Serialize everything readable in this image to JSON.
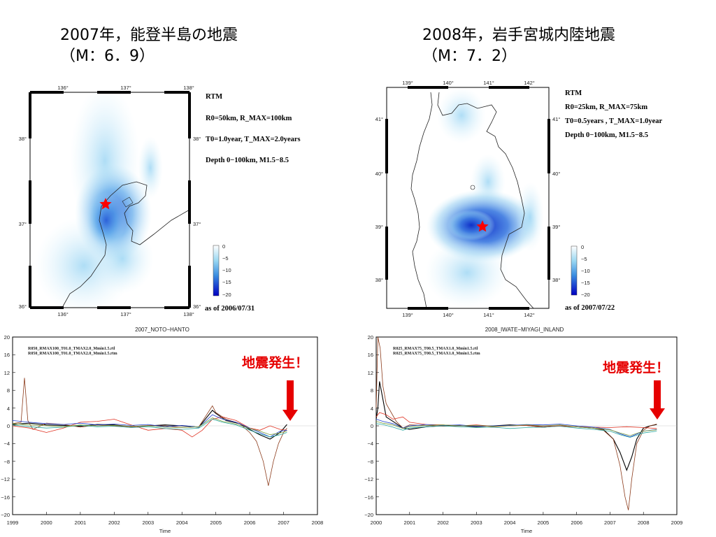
{
  "headings": {
    "left": {
      "line1": "2007年，能登半島の地震",
      "line2": "（M：6．9）"
    },
    "right": {
      "line1": "2008年，岩手宮城内陸地震",
      "line2": "（M：7．2）"
    }
  },
  "maps": [
    {
      "lon_labels": [
        "136°",
        "137°",
        "138°"
      ],
      "lat_labels": [
        "36°",
        "37°",
        "38°"
      ],
      "info": [
        "RTM",
        "R0=50km, R_MAX=100km",
        "T0=1.0year, T_MAX=2.0years",
        "Depth 0−100km, M1.5−8.5"
      ],
      "as_of": "as of 2006/07/31",
      "colorbar_ticks": [
        "0",
        "−5",
        "−10",
        "−15",
        "−20"
      ]
    },
    {
      "lon_labels": [
        "139°",
        "140°",
        "141°",
        "142°"
      ],
      "lat_labels": [
        "38°",
        "39°",
        "40°",
        "41°"
      ],
      "info": [
        "RTM",
        "R0=25km, R_MAX=75km",
        "T0=0.5years , T_MAX=1.0year",
        "Depth 0−100km, M1.5−8.5"
      ],
      "as_of": "as of 2007/07/22",
      "colorbar_ticks": [
        "0",
        "−5",
        "−10",
        "−15",
        "−20"
      ]
    }
  ],
  "alert_text": "地震発生！",
  "chart_data": [
    {
      "type": "line",
      "title": "2007_NOTO−HANTO",
      "xlabel": "Time",
      "ylabel": "",
      "xlim": [
        1999,
        2008
      ],
      "ylim": [
        -20,
        20
      ],
      "x_ticks": [
        "1999",
        "2000",
        "2001",
        "2002",
        "2003",
        "2004",
        "2005",
        "2006",
        "2007",
        "2008"
      ],
      "y_ticks": [
        "20",
        "16",
        "12",
        "8",
        "4",
        "0",
        "−4",
        "−8",
        "−12",
        "−16",
        "−20"
      ],
      "legend": [
        "R050_RMAX100_T01.0_TMAX2.0_Mmin1.5.rtl",
        "R050_RMAX100_T01.0_TMAX2.0_Mmin1.5.rtm"
      ],
      "event_x": 2007.2,
      "series": [
        {
          "color": "#000000",
          "x": [
            1999,
            1999.5,
            2000,
            2000.5,
            2001,
            2001.5,
            2002,
            2002.5,
            2003,
            2003.5,
            2004,
            2004.5,
            2004.9,
            2005,
            2005.3,
            2005.7,
            2006,
            2006.3,
            2006.6,
            2006.9,
            2007.1
          ],
          "values": [
            0.3,
            0.6,
            0.2,
            0.1,
            -0.1,
            0.3,
            0.2,
            -0.2,
            0,
            0.2,
            0,
            -0.3,
            3.5,
            2.8,
            1.2,
            0.5,
            -0.8,
            -2,
            -3,
            -1.5,
            0.3
          ]
        },
        {
          "color": "#8b3a1a",
          "x": [
            1999,
            1999.25,
            1999.35,
            1999.45,
            1999.6,
            2000,
            2000.5,
            2001,
            2001.5,
            2002,
            2002.5,
            2003,
            2003.5,
            2004,
            2004.5,
            2004.9,
            2005,
            2005.3,
            2005.7,
            2006,
            2006.2,
            2006.4,
            2006.55,
            2006.7,
            2006.85,
            2007,
            2007.1
          ],
          "values": [
            0.5,
            0.8,
            10.8,
            1.2,
            -0.8,
            0.6,
            0.3,
            -0.3,
            0.2,
            0,
            -0.2,
            0.1,
            0,
            -0.4,
            -0.2,
            4.5,
            3,
            1.5,
            0.5,
            -1.5,
            -3.5,
            -8,
            -13.5,
            -8,
            -4,
            -1.5,
            -0.5
          ]
        },
        {
          "color": "#e03020",
          "x": [
            1999,
            1999.5,
            2000,
            2000.5,
            2001,
            2001.5,
            2002,
            2002.5,
            2003,
            2003.5,
            2004,
            2004.3,
            2004.6,
            2004.9,
            2005.2,
            2005.6,
            2006,
            2006.3,
            2006.6,
            2006.9,
            2007.1
          ],
          "values": [
            0,
            -0.5,
            -1.5,
            -0.5,
            0.8,
            1,
            1.5,
            0.2,
            -1,
            -0.6,
            -1,
            -2.5,
            -1,
            1.5,
            2,
            1.2,
            -0.5,
            -1,
            0,
            -0.8,
            -1
          ]
        },
        {
          "color": "#2040d0",
          "x": [
            1999,
            1999.5,
            2000,
            2000.5,
            2001,
            2001.5,
            2002,
            2002.5,
            2003,
            2003.5,
            2004,
            2004.5,
            2004.9,
            2005.2,
            2005.6,
            2006,
            2006.3,
            2006.6,
            2006.9,
            2007.1
          ],
          "values": [
            1.2,
            0.8,
            0.5,
            0.3,
            0.6,
            0.2,
            0.4,
            0.1,
            0.3,
            -0.2,
            0.1,
            -0.3,
            2.5,
            1.5,
            0.8,
            -0.5,
            -1.5,
            -2.5,
            -1.2,
            -1
          ]
        },
        {
          "color": "#2aa9a0",
          "x": [
            1999,
            1999.5,
            2000,
            2000.5,
            2001,
            2001.5,
            2002,
            2002.5,
            2003,
            2003.5,
            2004,
            2004.5,
            2004.9,
            2005.2,
            2005.6,
            2006,
            2006.3,
            2006.6,
            2006.9,
            2007.1
          ],
          "values": [
            0.2,
            -0.2,
            -0.5,
            -0.3,
            0.1,
            -0.2,
            -0.1,
            -0.4,
            -0.2,
            -0.6,
            -0.8,
            -0.5,
            1.5,
            0.8,
            0.2,
            -1,
            -1.8,
            -2.5,
            -2,
            -1.5
          ]
        },
        {
          "color": "#7aa040",
          "x": [
            1999,
            1999.5,
            2000,
            2000.5,
            2001,
            2001.5,
            2002,
            2002.5,
            2003,
            2003.5,
            2004,
            2004.5,
            2004.9,
            2005.2,
            2005.6,
            2006,
            2006.3,
            2006.6,
            2006.9,
            2007.1
          ],
          "values": [
            0.5,
            0.2,
            0,
            -0.2,
            0.2,
            0,
            0.1,
            -0.1,
            0,
            -0.3,
            -0.4,
            -0.2,
            1.8,
            1,
            0.4,
            -0.6,
            -1.2,
            -2,
            -1.6,
            -1.2
          ]
        }
      ]
    },
    {
      "type": "line",
      "title": "2008_IWATE−MIYAGI_INLAND",
      "xlabel": "Time",
      "ylabel": "",
      "xlim": [
        2000,
        2009
      ],
      "ylim": [
        -20,
        20
      ],
      "x_ticks": [
        "2000",
        "2001",
        "2002",
        "2003",
        "2004",
        "2005",
        "2006",
        "2007",
        "2008",
        "2009"
      ],
      "y_ticks": [
        "20",
        "16",
        "12",
        "8",
        "4",
        "0",
        "−4",
        "−8",
        "−12",
        "−16",
        "−20"
      ],
      "legend": [
        "R025_RMAX75_T00.5_TMAX1.0_Mmin1.5.rtl",
        "R025_RMAX75_T00.5_TMAX1.0_Mmin1.5.rtm"
      ],
      "event_x": 2008.45,
      "series": [
        {
          "color": "#000000",
          "x": [
            2000,
            2000.05,
            2000.1,
            2000.2,
            2000.3,
            2000.5,
            2000.8,
            2001,
            2001.5,
            2002,
            2002.5,
            2003,
            2003.5,
            2004,
            2004.5,
            2005,
            2005.5,
            2006,
            2006.5,
            2006.8,
            2007.1,
            2007.3,
            2007.5,
            2007.65,
            2007.8,
            2008,
            2008.2,
            2008.4
          ],
          "values": [
            1.5,
            4,
            10,
            6,
            2,
            1,
            -0.5,
            -0.8,
            -0.2,
            0,
            0.1,
            -0.2,
            0,
            0.2,
            0.1,
            -0.3,
            0,
            -0.2,
            -0.5,
            -0.8,
            -3,
            -6,
            -10,
            -7,
            -3,
            -0.5,
            0,
            0.3
          ]
        },
        {
          "color": "#8b3a1a",
          "x": [
            2000,
            2000.05,
            2000.12,
            2000.2,
            2000.3,
            2000.45,
            2000.6,
            2000.8,
            2001,
            2001.5,
            2002,
            2002.5,
            2003,
            2003.5,
            2004,
            2004.5,
            2005,
            2005.5,
            2006,
            2006.5,
            2006.8,
            2007.1,
            2007.3,
            2007.45,
            2007.55,
            2007.65,
            2007.8,
            2008,
            2008.2,
            2008.4
          ],
          "values": [
            4,
            20,
            17.5,
            9,
            5,
            3,
            1,
            -0.5,
            0.2,
            0.1,
            -0.1,
            0,
            0.1,
            -0.2,
            0,
            0.1,
            -0.3,
            0,
            -0.2,
            -0.5,
            -1,
            -3,
            -9,
            -16,
            -19,
            -12,
            -4,
            -1,
            0,
            0.4
          ]
        },
        {
          "color": "#e03020",
          "x": [
            2000,
            2000.1,
            2000.3,
            2000.5,
            2000.8,
            2001,
            2001.5,
            2002,
            2002.5,
            2003,
            2003.5,
            2004,
            2004.5,
            2005,
            2005.5,
            2006,
            2006.5,
            2007,
            2007.5,
            2008,
            2008.4
          ],
          "values": [
            2,
            3,
            2.5,
            1.5,
            2,
            0.8,
            0.3,
            0.2,
            0,
            0.2,
            -0.1,
            0,
            0.1,
            -0.1,
            0,
            -0.2,
            -0.3,
            -0.4,
            -0.2,
            -0.4,
            -0.6
          ]
        },
        {
          "color": "#2040d0",
          "x": [
            2000,
            2000.2,
            2000.5,
            2000.8,
            2001,
            2001.5,
            2002,
            2002.5,
            2003,
            2003.5,
            2004,
            2004.5,
            2005,
            2005.5,
            2006,
            2006.5,
            2007,
            2007.3,
            2007.6,
            2008,
            2008.4
          ],
          "values": [
            1.5,
            1,
            0.5,
            -0.5,
            0,
            0.3,
            0.1,
            0.2,
            -0.1,
            0,
            0.1,
            0.3,
            0.2,
            0.4,
            0,
            -0.3,
            -0.8,
            -1.8,
            -2.5,
            -1.2,
            -0.8
          ]
        },
        {
          "color": "#2aa9a0",
          "x": [
            2000,
            2000.2,
            2000.5,
            2000.8,
            2001,
            2001.5,
            2002,
            2002.5,
            2003,
            2003.5,
            2004,
            2004.5,
            2005,
            2005.5,
            2006,
            2006.5,
            2007,
            2007.3,
            2007.6,
            2008,
            2008.4
          ],
          "values": [
            0.5,
            0.3,
            -0.3,
            -1,
            -0.5,
            -0.2,
            0,
            -0.2,
            -0.4,
            -0.3,
            -0.6,
            -0.4,
            -0.3,
            -0.1,
            -0.5,
            -0.8,
            -1.2,
            -2,
            -2.6,
            -1.6,
            -1.2
          ]
        },
        {
          "color": "#7aa040",
          "x": [
            2000,
            2000.2,
            2000.5,
            2000.8,
            2001,
            2001.5,
            2002,
            2002.5,
            2003,
            2003.5,
            2004,
            2004.5,
            2005,
            2005.5,
            2006,
            2006.5,
            2007,
            2007.3,
            2007.6,
            2008,
            2008.4
          ],
          "values": [
            1,
            0.6,
            0.2,
            -0.6,
            -0.2,
            0.1,
            0.2,
            0,
            0.1,
            -0.1,
            0,
            0.2,
            0,
            0.2,
            -0.2,
            -0.5,
            -0.9,
            -1.6,
            -2.2,
            -1.2,
            -0.9
          ]
        }
      ]
    }
  ]
}
